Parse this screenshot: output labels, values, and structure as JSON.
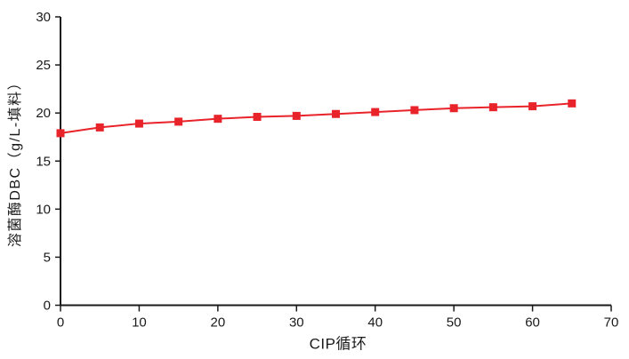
{
  "figure": {
    "background": "#ffffff"
  },
  "chart_data": {
    "type": "line",
    "title": "",
    "xlabel": "CIP循环",
    "ylabel": "溶菌酶DBC（g/L-填料）",
    "xlim": [
      0,
      70
    ],
    "ylim": [
      0,
      30
    ],
    "xticks": [
      0,
      10,
      20,
      30,
      40,
      50,
      60,
      70
    ],
    "yticks": [
      0,
      5,
      10,
      15,
      20,
      25,
      30
    ],
    "grid": false,
    "legend_position": "none",
    "axis_color": "#1a1a1a",
    "x": [
      0,
      5,
      10,
      15,
      20,
      25,
      30,
      35,
      40,
      45,
      50,
      55,
      60,
      65
    ],
    "series": [
      {
        "name": "溶菌酶DBC",
        "color": "#e8232a",
        "marker": "square",
        "values": [
          17.9,
          18.5,
          18.9,
          19.1,
          19.4,
          19.6,
          19.7,
          19.9,
          20.1,
          20.3,
          20.5,
          20.6,
          20.7,
          21.0
        ]
      }
    ]
  }
}
